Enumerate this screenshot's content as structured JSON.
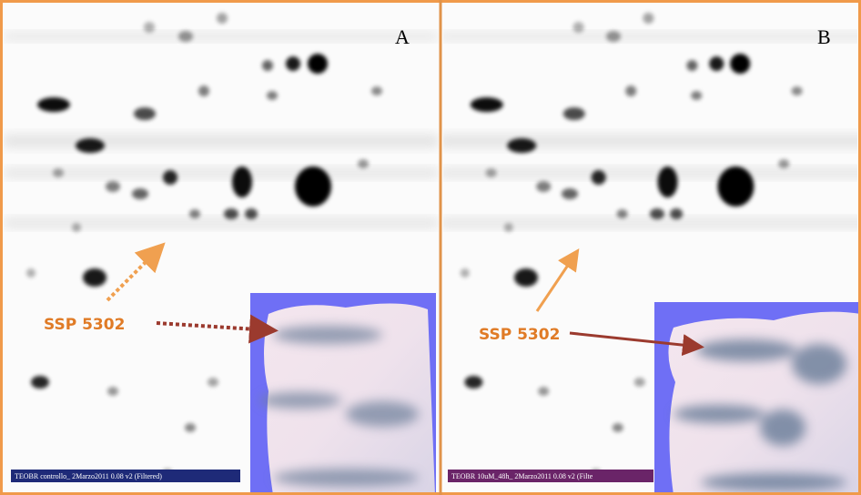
{
  "panels": [
    {
      "label": "A",
      "spot_label": "SSP 5302",
      "caption": "TEOBR controllo_ 2Marzo2011 0.08 v2 (Filtered)"
    },
    {
      "label": "B",
      "spot_label": "SSP 5302",
      "caption": "TEOBR 10uM_48h_ 2Marzo2011 0.08 v2 (Filte"
    }
  ]
}
